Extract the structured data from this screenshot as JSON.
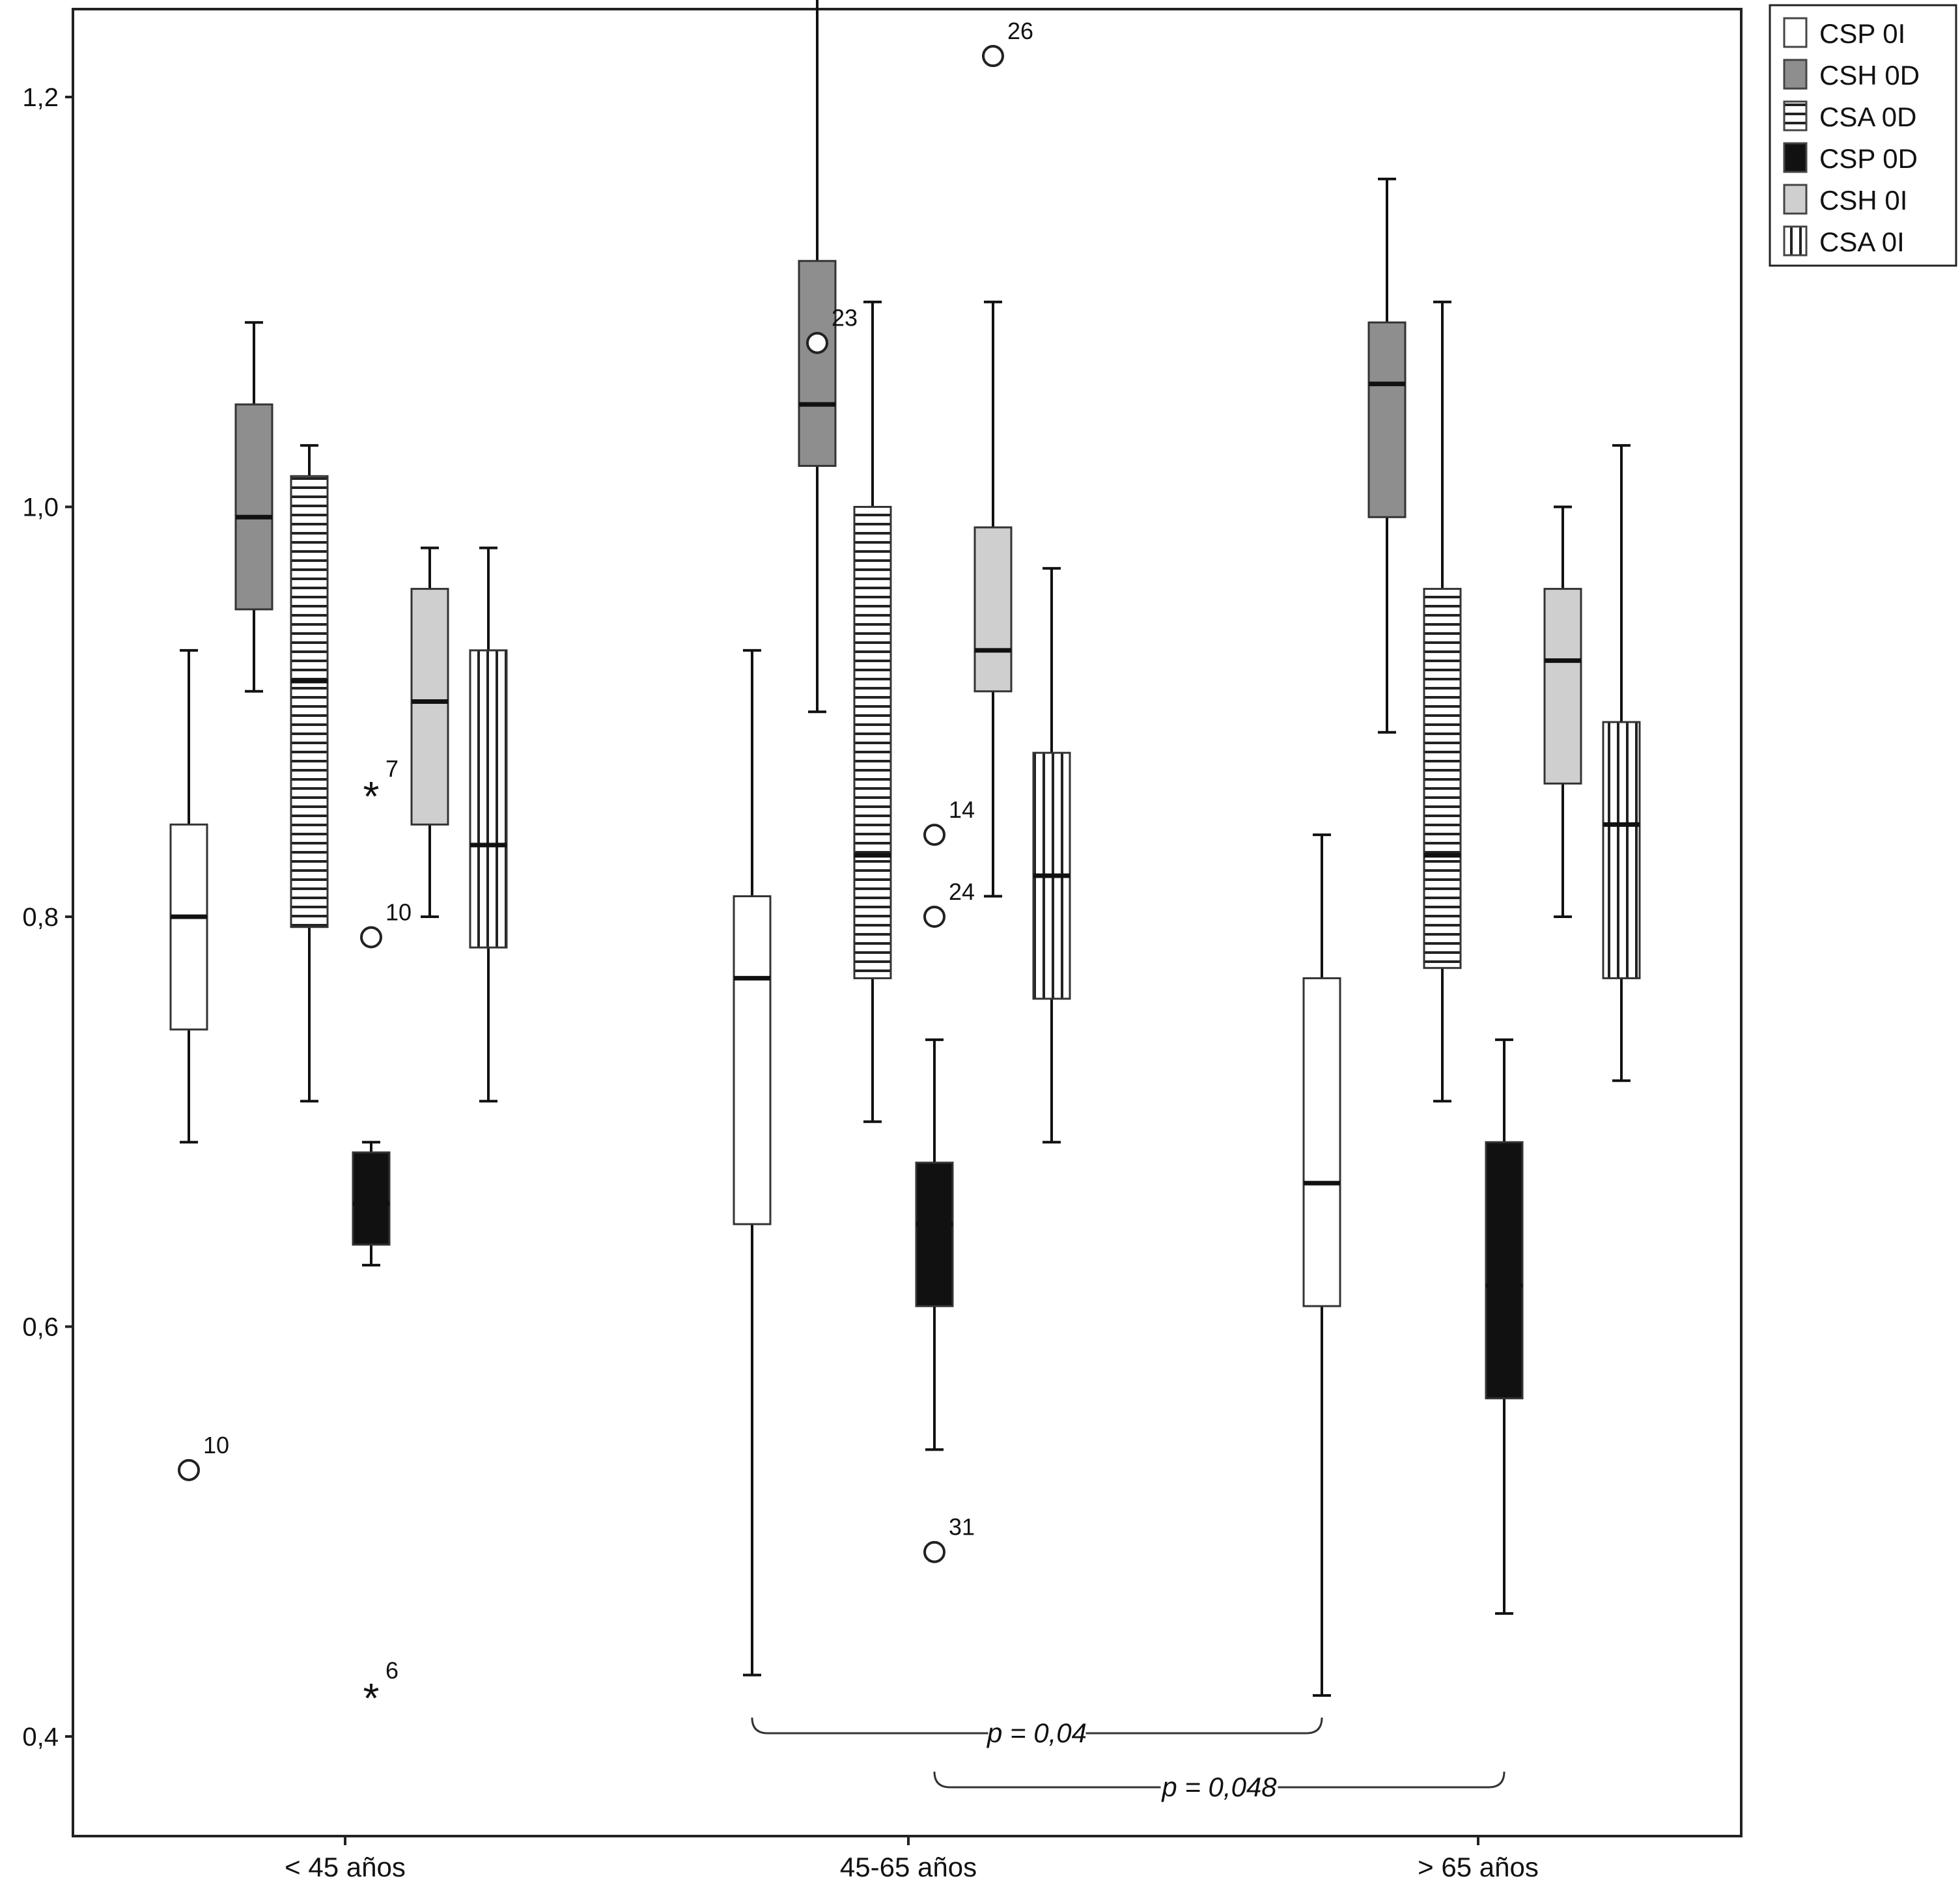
{
  "chart_data": {
    "type": "boxplot",
    "title": "",
    "xlabel": "",
    "ylabel": "",
    "ylim": [
      0.36,
      1.25
    ],
    "y_ticks": [
      {
        "value": 0.4,
        "label": "0,4"
      },
      {
        "value": 0.6,
        "label": "0,6"
      },
      {
        "value": 0.8,
        "label": "0,8"
      },
      {
        "value": 1.0,
        "label": "1,0"
      },
      {
        "value": 1.2,
        "label": "1,2"
      }
    ],
    "grid": false,
    "legend_position": "top-right, outside plot",
    "categories": [
      "< 45 años",
      "45-65 años",
      "> 65 años"
    ],
    "series": [
      {
        "name": "CSP 0I",
        "pattern": "white",
        "fill": "#ffffff",
        "boxes": [
          {
            "whisker_low": 0.69,
            "q1": 0.745,
            "median": 0.8,
            "q3": 0.845,
            "whisker_high": 0.93,
            "outliers": [
              {
                "value": 0.53,
                "label": "10",
                "marker": "circle"
              }
            ]
          },
          {
            "whisker_low": 0.43,
            "q1": 0.65,
            "median": 0.77,
            "q3": 0.81,
            "whisker_high": 0.93,
            "outliers": []
          },
          {
            "whisker_low": 0.42,
            "q1": 0.61,
            "median": 0.67,
            "q3": 0.77,
            "whisker_high": 0.84,
            "outliers": []
          }
        ]
      },
      {
        "name": "CSH 0D",
        "pattern": "dark-gray",
        "fill": "#8e8e8e",
        "boxes": [
          {
            "whisker_low": 0.91,
            "q1": 0.95,
            "median": 0.995,
            "q3": 1.05,
            "whisker_high": 1.09,
            "outliers": []
          },
          {
            "whisker_low": 0.9,
            "q1": 1.02,
            "median": 1.05,
            "q3": 1.12,
            "whisker_high": 1.25,
            "outliers": [
              {
                "value": 1.08,
                "label": "23",
                "marker": "circle"
              }
            ]
          },
          {
            "whisker_low": 0.89,
            "q1": 0.995,
            "median": 1.06,
            "q3": 1.09,
            "whisker_high": 1.16,
            "outliers": []
          }
        ]
      },
      {
        "name": "CSA 0D",
        "pattern": "horizontal-stripes",
        "fill": "#ffffff",
        "boxes": [
          {
            "whisker_low": 0.71,
            "q1": 0.795,
            "median": 0.915,
            "q3": 1.015,
            "whisker_high": 1.03,
            "outliers": []
          },
          {
            "whisker_low": 0.7,
            "q1": 0.77,
            "median": 0.83,
            "q3": 1.0,
            "whisker_high": 1.1,
            "outliers": []
          },
          {
            "whisker_low": 0.71,
            "q1": 0.775,
            "median": 0.83,
            "q3": 0.96,
            "whisker_high": 1.1,
            "outliers": []
          }
        ]
      },
      {
        "name": "CSP 0D",
        "pattern": "black",
        "fill": "#111111",
        "boxes": [
          {
            "whisker_low": 0.63,
            "q1": 0.64,
            "median": 0.66,
            "q3": 0.685,
            "whisker_high": 0.69,
            "outliers": [
              {
                "value": 0.86,
                "label": "7",
                "marker": "star"
              },
              {
                "value": 0.79,
                "label": "10",
                "marker": "circle"
              },
              {
                "value": 0.42,
                "label": "6",
                "marker": "star"
              }
            ]
          },
          {
            "whisker_low": 0.54,
            "q1": 0.61,
            "median": 0.65,
            "q3": 0.68,
            "whisker_high": 0.74,
            "outliers": [
              {
                "value": 0.84,
                "label": "14",
                "marker": "circle"
              },
              {
                "value": 0.8,
                "label": "24",
                "marker": "circle"
              },
              {
                "value": 0.49,
                "label": "31",
                "marker": "circle"
              }
            ]
          },
          {
            "whisker_low": 0.46,
            "q1": 0.565,
            "median": 0.62,
            "q3": 0.69,
            "whisker_high": 0.74,
            "outliers": []
          }
        ]
      },
      {
        "name": "CSH 0I",
        "pattern": "light-gray",
        "fill": "#cfcfcf",
        "boxes": [
          {
            "whisker_low": 0.8,
            "q1": 0.845,
            "median": 0.905,
            "q3": 0.96,
            "whisker_high": 0.98,
            "outliers": []
          },
          {
            "whisker_low": 0.81,
            "q1": 0.91,
            "median": 0.93,
            "q3": 0.99,
            "whisker_high": 1.1,
            "outliers": [
              {
                "value": 1.22,
                "label": "26",
                "marker": "circle"
              }
            ]
          },
          {
            "whisker_low": 0.8,
            "q1": 0.865,
            "median": 0.925,
            "q3": 0.96,
            "whisker_high": 1.0,
            "outliers": []
          }
        ]
      },
      {
        "name": "CSA 0I",
        "pattern": "vertical-stripes",
        "fill": "#ffffff",
        "boxes": [
          {
            "whisker_low": 0.71,
            "q1": 0.785,
            "median": 0.835,
            "q3": 0.93,
            "whisker_high": 0.98,
            "outliers": []
          },
          {
            "whisker_low": 0.69,
            "q1": 0.76,
            "median": 0.82,
            "q3": 0.88,
            "whisker_high": 0.97,
            "outliers": []
          },
          {
            "whisker_low": 0.72,
            "q1": 0.77,
            "median": 0.845,
            "q3": 0.895,
            "whisker_high": 1.03,
            "outliers": []
          }
        ]
      }
    ],
    "annotations": [
      {
        "text": "p = 0,04",
        "from_category": 1,
        "from_series": 0,
        "to_category": 2,
        "to_series": 0,
        "level": 1
      },
      {
        "text": "p = 0,048",
        "from_category": 1,
        "from_series": 3,
        "to_category": 2,
        "to_series": 3,
        "level": 2
      }
    ]
  }
}
